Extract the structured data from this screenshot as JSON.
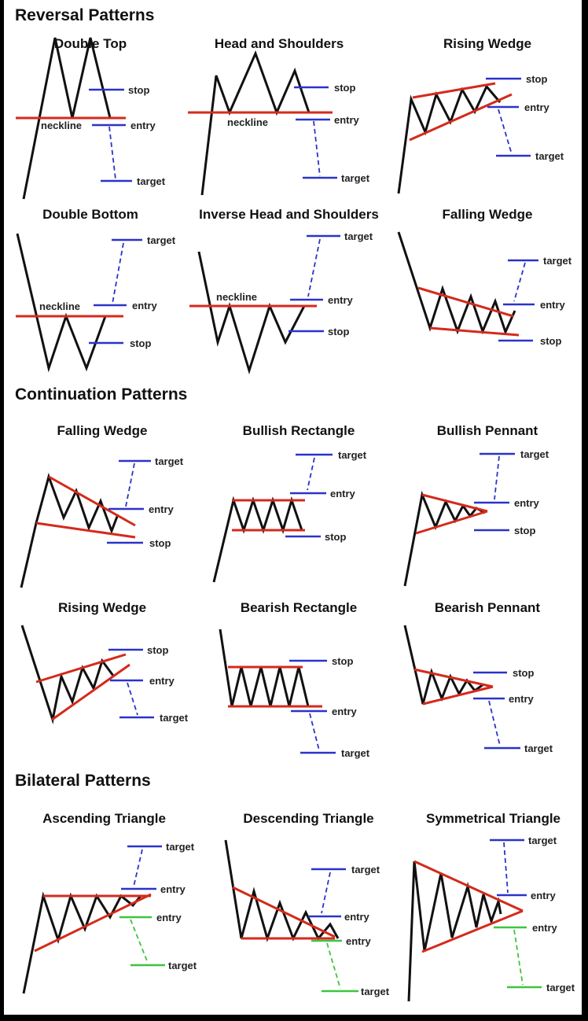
{
  "sections": {
    "reversal": "Reversal Patterns",
    "continuation": "Continuation Patterns",
    "bilateral": "Bilateral Patterns"
  },
  "labels": {
    "stop": "stop",
    "entry": "entry",
    "target": "target",
    "neckline": "neckline"
  },
  "patterns": {
    "double_top": "Double Top",
    "head_and_shoulders": "Head and Shoulders",
    "rising_wedge_rev": "Rising Wedge",
    "double_bottom": "Double Bottom",
    "inverse_head_and_shoulders": "Inverse Head and Shoulders",
    "falling_wedge_rev": "Falling Wedge",
    "falling_wedge_cont": "Falling Wedge",
    "bullish_rectangle": "Bullish Rectangle",
    "bullish_pennant": "Bullish Pennant",
    "rising_wedge_cont": "Rising Wedge",
    "bearish_rectangle": "Bearish Rectangle",
    "bearish_pennant": "Bearish Pennant",
    "ascending_triangle": "Ascending Triangle",
    "descending_triangle": "Descending Triangle",
    "symmetrical_triangle": "Symmetrical Triangle"
  },
  "colors": {
    "price_line": "#111111",
    "trendline": "#d42a1c",
    "level": "#2b33c9",
    "alt_level": "#3ec43e",
    "background": "#ffffff"
  }
}
